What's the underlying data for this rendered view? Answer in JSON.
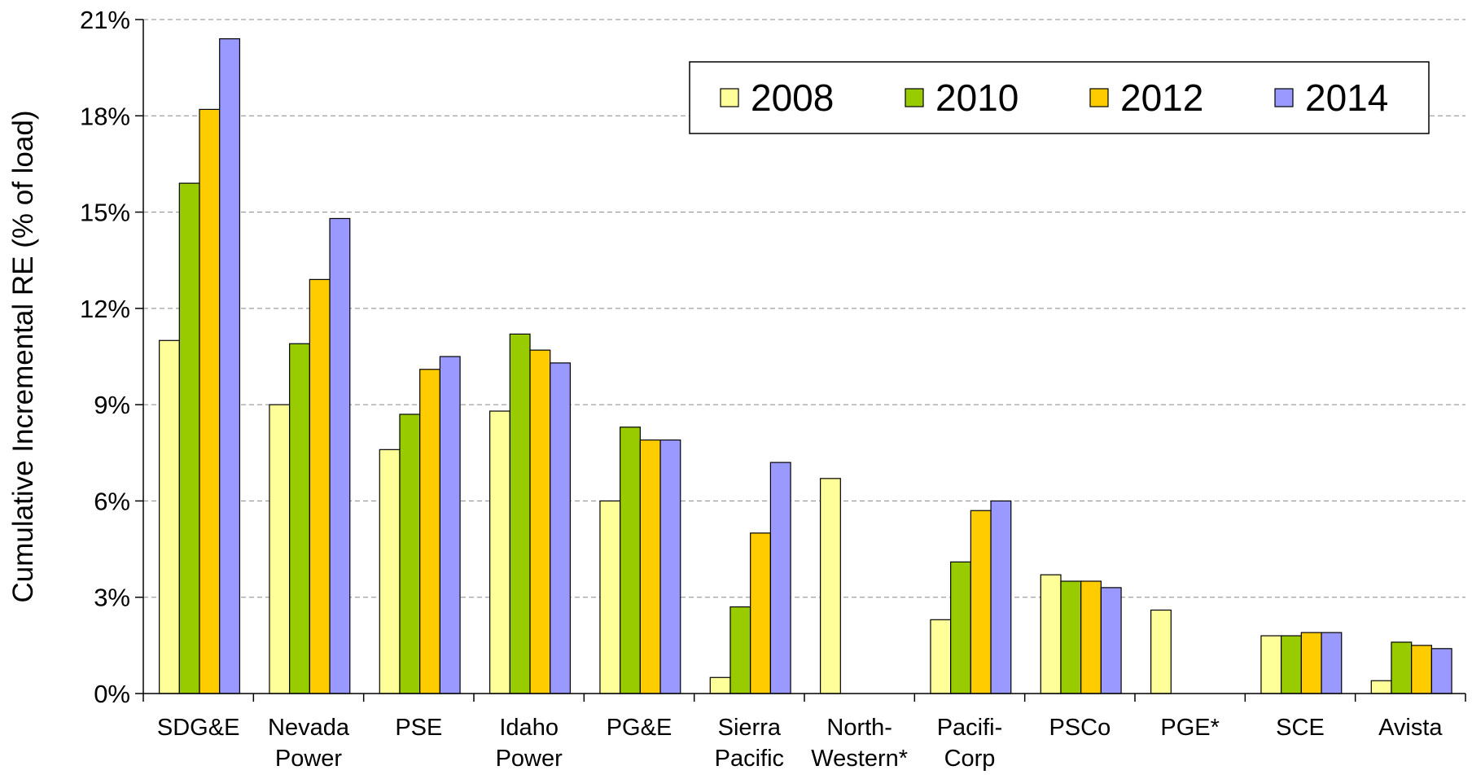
{
  "chart_data": {
    "type": "bar",
    "y_label": "Cumulative Incremental RE (% of load)",
    "categories": [
      [
        "SDG&E"
      ],
      [
        "Nevada",
        "Power"
      ],
      [
        "PSE"
      ],
      [
        "Idaho",
        "Power"
      ],
      [
        "PG&E"
      ],
      [
        "Sierra",
        "Pacific"
      ],
      [
        "North-",
        "Western*"
      ],
      [
        "Pacifi-",
        "Corp"
      ],
      [
        "PSCo"
      ],
      [
        "PGE*"
      ],
      [
        "SCE"
      ],
      [
        "Avista"
      ]
    ],
    "series": [
      {
        "name": "2008",
        "color": "#ffff99",
        "values": [
          11.0,
          9.0,
          7.6,
          8.8,
          6.0,
          0.5,
          6.7,
          2.3,
          3.7,
          2.6,
          1.8,
          0.4
        ]
      },
      {
        "name": "2010",
        "color": "#99cc00",
        "values": [
          15.9,
          10.9,
          8.7,
          11.2,
          8.3,
          2.7,
          null,
          4.1,
          3.5,
          null,
          1.8,
          1.6
        ]
      },
      {
        "name": "2012",
        "color": "#ffcc00",
        "values": [
          18.2,
          12.9,
          10.1,
          10.7,
          7.9,
          5.0,
          null,
          5.7,
          3.5,
          null,
          1.9,
          1.5
        ]
      },
      {
        "name": "2014",
        "color": "#9999ff",
        "values": [
          20.4,
          14.8,
          10.5,
          10.3,
          7.9,
          7.2,
          null,
          6.0,
          3.3,
          null,
          1.9,
          1.4
        ]
      }
    ],
    "ylim": [
      0,
      21
    ],
    "yticks": [
      {
        "value": 0,
        "label": "0%"
      },
      {
        "value": 3,
        "label": "3%"
      },
      {
        "value": 6,
        "label": "6%"
      },
      {
        "value": 9,
        "label": "9%"
      },
      {
        "value": 12,
        "label": "12%"
      },
      {
        "value": 15,
        "label": "15%"
      },
      {
        "value": 18,
        "label": "18%"
      },
      {
        "value": 21,
        "label": "21%"
      }
    ],
    "grid": true,
    "legend": "top-right"
  }
}
